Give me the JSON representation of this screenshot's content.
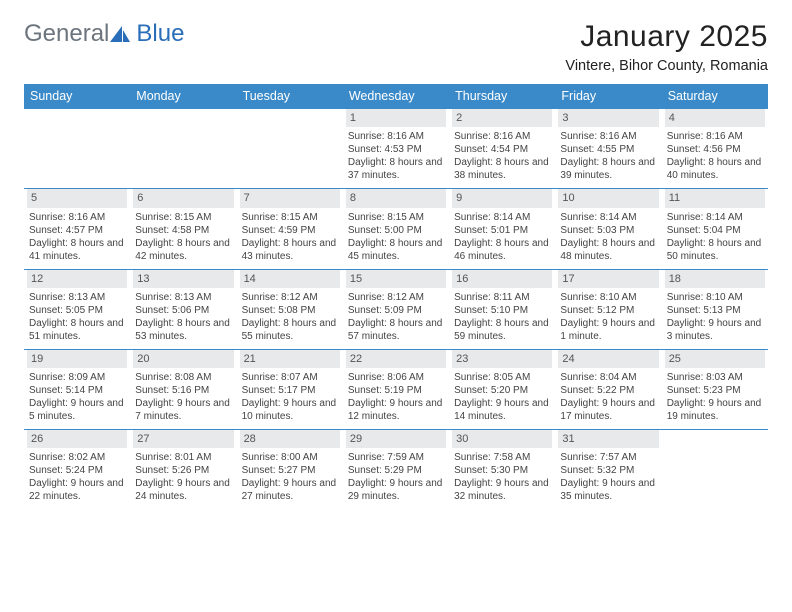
{
  "logo": {
    "word1": "General",
    "word2": "Blue"
  },
  "title": "January 2025",
  "location": "Vintere, Bihor County, Romania",
  "colors": {
    "header_blue": "#3a8ac9",
    "daynum_bg": "#e8e9ea",
    "logo_gray": "#6c757d",
    "logo_blue": "#2a6db8"
  },
  "day_headers": [
    "Sunday",
    "Monday",
    "Tuesday",
    "Wednesday",
    "Thursday",
    "Friday",
    "Saturday"
  ],
  "weeks": [
    [
      {
        "empty": true
      },
      {
        "empty": true
      },
      {
        "empty": true
      },
      {
        "n": "1",
        "sr": "8:16 AM",
        "ss": "4:53 PM",
        "dl": "8 hours and 37 minutes."
      },
      {
        "n": "2",
        "sr": "8:16 AM",
        "ss": "4:54 PM",
        "dl": "8 hours and 38 minutes."
      },
      {
        "n": "3",
        "sr": "8:16 AM",
        "ss": "4:55 PM",
        "dl": "8 hours and 39 minutes."
      },
      {
        "n": "4",
        "sr": "8:16 AM",
        "ss": "4:56 PM",
        "dl": "8 hours and 40 minutes."
      }
    ],
    [
      {
        "n": "5",
        "sr": "8:16 AM",
        "ss": "4:57 PM",
        "dl": "8 hours and 41 minutes."
      },
      {
        "n": "6",
        "sr": "8:15 AM",
        "ss": "4:58 PM",
        "dl": "8 hours and 42 minutes."
      },
      {
        "n": "7",
        "sr": "8:15 AM",
        "ss": "4:59 PM",
        "dl": "8 hours and 43 minutes."
      },
      {
        "n": "8",
        "sr": "8:15 AM",
        "ss": "5:00 PM",
        "dl": "8 hours and 45 minutes."
      },
      {
        "n": "9",
        "sr": "8:14 AM",
        "ss": "5:01 PM",
        "dl": "8 hours and 46 minutes."
      },
      {
        "n": "10",
        "sr": "8:14 AM",
        "ss": "5:03 PM",
        "dl": "8 hours and 48 minutes."
      },
      {
        "n": "11",
        "sr": "8:14 AM",
        "ss": "5:04 PM",
        "dl": "8 hours and 50 minutes."
      }
    ],
    [
      {
        "n": "12",
        "sr": "8:13 AM",
        "ss": "5:05 PM",
        "dl": "8 hours and 51 minutes."
      },
      {
        "n": "13",
        "sr": "8:13 AM",
        "ss": "5:06 PM",
        "dl": "8 hours and 53 minutes."
      },
      {
        "n": "14",
        "sr": "8:12 AM",
        "ss": "5:08 PM",
        "dl": "8 hours and 55 minutes."
      },
      {
        "n": "15",
        "sr": "8:12 AM",
        "ss": "5:09 PM",
        "dl": "8 hours and 57 minutes."
      },
      {
        "n": "16",
        "sr": "8:11 AM",
        "ss": "5:10 PM",
        "dl": "8 hours and 59 minutes."
      },
      {
        "n": "17",
        "sr": "8:10 AM",
        "ss": "5:12 PM",
        "dl": "9 hours and 1 minute."
      },
      {
        "n": "18",
        "sr": "8:10 AM",
        "ss": "5:13 PM",
        "dl": "9 hours and 3 minutes."
      }
    ],
    [
      {
        "n": "19",
        "sr": "8:09 AM",
        "ss": "5:14 PM",
        "dl": "9 hours and 5 minutes."
      },
      {
        "n": "20",
        "sr": "8:08 AM",
        "ss": "5:16 PM",
        "dl": "9 hours and 7 minutes."
      },
      {
        "n": "21",
        "sr": "8:07 AM",
        "ss": "5:17 PM",
        "dl": "9 hours and 10 minutes."
      },
      {
        "n": "22",
        "sr": "8:06 AM",
        "ss": "5:19 PM",
        "dl": "9 hours and 12 minutes."
      },
      {
        "n": "23",
        "sr": "8:05 AM",
        "ss": "5:20 PM",
        "dl": "9 hours and 14 minutes."
      },
      {
        "n": "24",
        "sr": "8:04 AM",
        "ss": "5:22 PM",
        "dl": "9 hours and 17 minutes."
      },
      {
        "n": "25",
        "sr": "8:03 AM",
        "ss": "5:23 PM",
        "dl": "9 hours and 19 minutes."
      }
    ],
    [
      {
        "n": "26",
        "sr": "8:02 AM",
        "ss": "5:24 PM",
        "dl": "9 hours and 22 minutes."
      },
      {
        "n": "27",
        "sr": "8:01 AM",
        "ss": "5:26 PM",
        "dl": "9 hours and 24 minutes."
      },
      {
        "n": "28",
        "sr": "8:00 AM",
        "ss": "5:27 PM",
        "dl": "9 hours and 27 minutes."
      },
      {
        "n": "29",
        "sr": "7:59 AM",
        "ss": "5:29 PM",
        "dl": "9 hours and 29 minutes."
      },
      {
        "n": "30",
        "sr": "7:58 AM",
        "ss": "5:30 PM",
        "dl": "9 hours and 32 minutes."
      },
      {
        "n": "31",
        "sr": "7:57 AM",
        "ss": "5:32 PM",
        "dl": "9 hours and 35 minutes."
      },
      {
        "empty": true
      }
    ]
  ],
  "labels": {
    "sunrise": "Sunrise: ",
    "sunset": "Sunset: ",
    "daylight": "Daylight: "
  }
}
